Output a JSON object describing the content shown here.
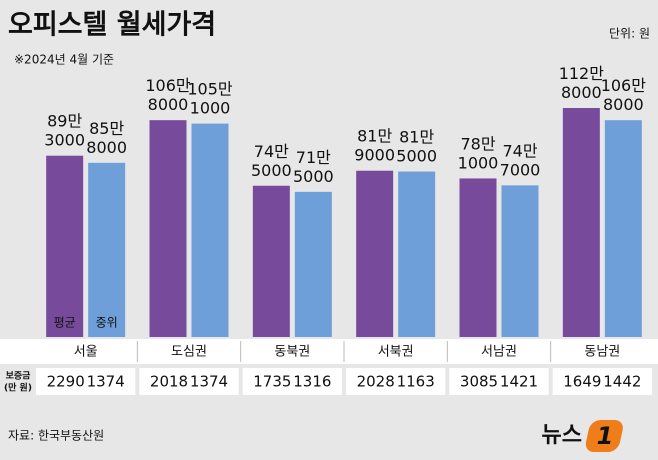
{
  "chart_data": {
    "type": "bar",
    "title": "오피스텔 월세가격",
    "subtitle": "※2024년 4월 기준",
    "unit": "단위: 원",
    "source": "자료: 한국부동산원",
    "logo_text": "뉴스",
    "logo_mark": "1",
    "categories": [
      "서울",
      "도심권",
      "동북권",
      "서북권",
      "서남권",
      "동남권"
    ],
    "series": [
      {
        "name": "평균",
        "color": "#774a9c",
        "values": [
          893000,
          1068000,
          745000,
          819000,
          781000,
          1128000
        ],
        "value_labels": [
          "89만 3000",
          "106만 8000",
          "74만 5000",
          "81만 9000",
          "78만 1000",
          "112만 8000"
        ]
      },
      {
        "name": "중위",
        "color": "#6e9fd9",
        "values": [
          858000,
          1051000,
          715000,
          815000,
          747000,
          1068000
        ],
        "value_labels": [
          "85만 8000",
          "105만 1000",
          "71만 5000",
          "81만 5000",
          "74만 7000",
          "106만 8000"
        ]
      }
    ],
    "deposit": {
      "label_lines": [
        "보증금",
        "(만 원)"
      ],
      "series": [
        [
          2290,
          2018,
          1735,
          2028,
          3085,
          1649
        ],
        [
          1374,
          1374,
          1316,
          1163,
          1421,
          1442
        ]
      ]
    }
  }
}
